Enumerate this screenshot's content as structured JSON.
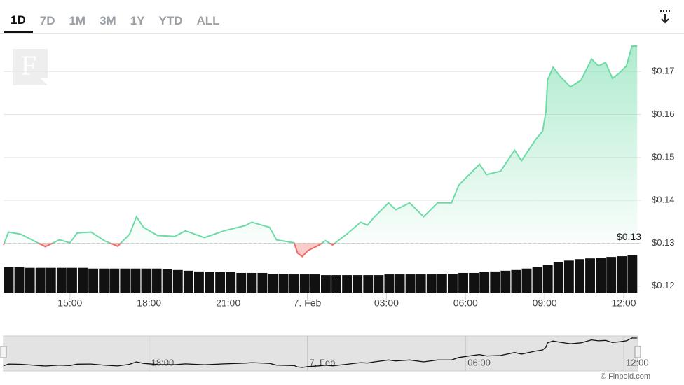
{
  "range_buttons": [
    "1D",
    "7D",
    "1M",
    "3M",
    "1Y",
    "YTD",
    "ALL"
  ],
  "selected_range": "1D",
  "credit": "© Finbold.com",
  "chart_data": {
    "type": "area",
    "color": "#6ddba6",
    "negative_color": "#ef6a63",
    "x": [
      12.48,
      12.67,
      13.14,
      13.81,
      14.07,
      14.6,
      15.0,
      15.27,
      15.8,
      16.33,
      16.81,
      17.26,
      17.52,
      17.79,
      18.32,
      18.98,
      19.38,
      20.1,
      20.84,
      21.64,
      21.9,
      22.57,
      22.83,
      23.5,
      23.63,
      23.81,
      24.03,
      24.43,
      24.69,
      24.96,
      25.49,
      26.02,
      26.28,
      26.55,
      27.08,
      27.35,
      27.88,
      28.41,
      28.94,
      29.47,
      29.74,
      30.27,
      30.53,
      30.8,
      31.33,
      31.86,
      32.12,
      32.66,
      32.92,
      33.05,
      33.11,
      33.32,
      33.58,
      33.98,
      34.38,
      34.78,
      35.04,
      35.31,
      35.57,
      35.84,
      36.1,
      36.31,
      36.51
    ],
    "values": [
      0.1296,
      0.1326,
      0.1321,
      0.13,
      0.1292,
      0.1308,
      0.1301,
      0.1324,
      0.1326,
      0.1305,
      0.1293,
      0.1321,
      0.1362,
      0.1337,
      0.1318,
      0.1316,
      0.1329,
      0.1313,
      0.1329,
      0.1341,
      0.1349,
      0.1337,
      0.1308,
      0.1301,
      0.1277,
      0.1269,
      0.1283,
      0.1295,
      0.1306,
      0.1296,
      0.1321,
      0.1349,
      0.1342,
      0.1362,
      0.1394,
      0.1378,
      0.1394,
      0.1362,
      0.1394,
      0.1394,
      0.1435,
      0.1468,
      0.1484,
      0.146,
      0.1468,
      0.1517,
      0.1492,
      0.1542,
      0.1561,
      0.1607,
      0.168,
      0.171,
      0.1689,
      0.1664,
      0.168,
      0.1729,
      0.1713,
      0.1721,
      0.1684,
      0.1697,
      0.1713,
      0.1759,
      0.1759
    ],
    "volume_values": [
      35,
      35,
      34,
      34,
      34,
      34,
      34,
      34,
      33,
      33,
      33,
      33,
      33,
      33,
      33,
      32,
      31,
      30,
      29,
      28,
      28,
      28,
      27,
      27,
      27,
      26,
      26,
      25,
      25,
      25,
      24,
      24,
      24,
      24,
      24,
      24,
      25,
      25,
      25,
      25,
      25,
      26,
      26,
      27,
      27,
      28,
      29,
      30,
      31,
      33,
      35,
      38,
      42,
      44,
      46,
      47,
      48,
      49,
      50,
      52
    ],
    "reference_line": {
      "value": 0.13,
      "label": "$0.13"
    },
    "xlim": [
      12.48,
      36.53
    ],
    "xticks": [
      {
        "value": 15,
        "label": "15:00"
      },
      {
        "value": 18,
        "label": "18:00"
      },
      {
        "value": 21,
        "label": "21:00"
      },
      {
        "value": 24,
        "label": "7. Feb"
      },
      {
        "value": 27,
        "label": "03:00"
      },
      {
        "value": 30,
        "label": "06:00"
      },
      {
        "value": 33,
        "label": "09:00"
      },
      {
        "value": 36,
        "label": "12:00"
      }
    ],
    "navigator_ticks": [
      1,
      3,
      5,
      7
    ],
    "ylim": [
      0.1185,
      0.179
    ],
    "yticks": [
      {
        "value": 0.12,
        "label": "$0.12"
      },
      {
        "value": 0.13,
        "label": "$0.13"
      },
      {
        "value": 0.14,
        "label": "$0.14"
      },
      {
        "value": 0.15,
        "label": "$0.15"
      },
      {
        "value": 0.16,
        "label": "$0.16"
      },
      {
        "value": 0.17,
        "label": "$0.17"
      }
    ],
    "grid": true
  }
}
